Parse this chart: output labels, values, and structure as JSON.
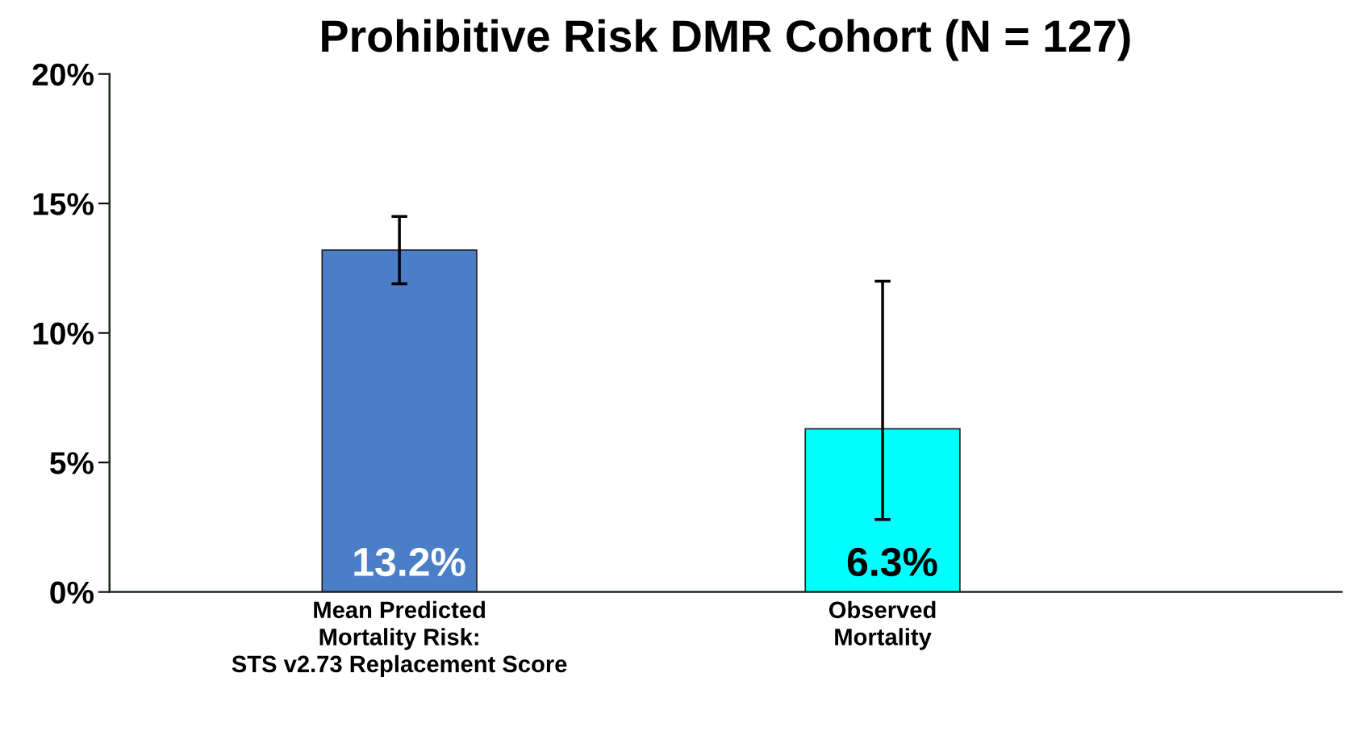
{
  "chart_data": {
    "type": "bar",
    "title": "Prohibitive Risk DMR Cohort (N = 127)",
    "categories": [
      "Mean Predicted\nMortality Risk:\nSTS v2.73 Replacement Score",
      "Observed\nMortality"
    ],
    "values": [
      13.2,
      6.3
    ],
    "colors": [
      "#4a7ec7",
      "#00ffff"
    ],
    "errors": [
      [
        11.9,
        14.5
      ],
      [
        2.8,
        12.0
      ]
    ],
    "value_labels": [
      "13.2%",
      "6.3%"
    ],
    "ylim": [
      0,
      20
    ],
    "yticks": [
      {
        "value": 0,
        "label": "0%"
      },
      {
        "value": 5,
        "label": "5%"
      },
      {
        "value": 10,
        "label": "10%"
      },
      {
        "value": 15,
        "label": "15%"
      },
      {
        "value": 20,
        "label": "20%"
      }
    ],
    "grid": false,
    "legend": false
  }
}
